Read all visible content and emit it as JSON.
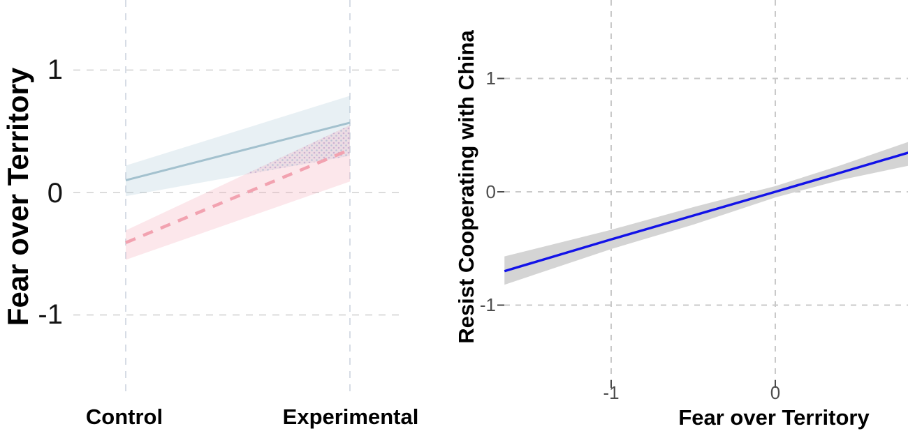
{
  "page": {
    "background": "#ffffff"
  },
  "chart_data": [
    {
      "id": "interaction-plot",
      "type": "line",
      "title": "",
      "xlabel": "",
      "ylabel": "Fear over Territory",
      "categories": [
        "Control",
        "Experimental"
      ],
      "yticks": [
        "1",
        "0",
        "-1"
      ],
      "ytick_values": [
        1,
        0,
        -1
      ],
      "ylim": [
        -1.65,
        1.57
      ],
      "grid": "dashed",
      "legend": "none",
      "colors": {
        "h_gridline": "#dcdcdc",
        "v_gridline": "#d6dce5",
        "overlap_stipple_a": "#b18cc4",
        "overlap_stipple_b": "#8fa8cc"
      },
      "series": [
        {
          "name": "group-solid-blue",
          "line_style": "solid",
          "line_color": "#a3c1ce",
          "band_color": "#a9c6d6",
          "band_opacity": 0.27,
          "values": [
            0.1,
            0.57
          ],
          "ci_lower": [
            -0.03,
            0.3
          ],
          "ci_upper": [
            0.22,
            0.79
          ]
        },
        {
          "name": "group-dashed-pink",
          "line_style": "dashed",
          "line_color": "#f2a2b0",
          "band_color": "#f5aebc",
          "band_opacity": 0.3,
          "values": [
            -0.41,
            0.35
          ],
          "ci_lower": [
            -0.55,
            0.09
          ],
          "ci_upper": [
            -0.31,
            0.55
          ]
        }
      ]
    },
    {
      "id": "marginal-effect-plot",
      "type": "line",
      "title": "",
      "xlabel": "Fear over Territory",
      "ylabel": "Resist Cooperating with China",
      "xticks": [
        "-1",
        "0"
      ],
      "xtick_values": [
        -1,
        0
      ],
      "yticks": [
        "1",
        "0",
        "-1"
      ],
      "ytick_values": [
        1,
        0,
        -1
      ],
      "xlim": [
        -1.65,
        0.81
      ],
      "ylim": [
        -1.66,
        1.69
      ],
      "grid": "dashed",
      "legend": "none",
      "colors": {
        "gridline": "#c9c9c9",
        "tick_mark": "#4a4a4a",
        "line": "#1212e8",
        "band": "#d4d4d4"
      },
      "line": {
        "x": [
          -1.65,
          -1.0,
          -0.5,
          0,
          0.4,
          0.81
        ],
        "y": [
          -0.7,
          -0.42,
          -0.21,
          0.0,
          0.17,
          0.345
        ]
      },
      "band": {
        "x": [
          -1.65,
          -1.0,
          -0.5,
          0,
          0.4,
          0.81
        ],
        "upper": [
          -0.57,
          -0.335,
          -0.135,
          0.05,
          0.235,
          0.44
        ],
        "lower": [
          -0.82,
          -0.505,
          -0.29,
          -0.05,
          0.105,
          0.23
        ]
      }
    }
  ]
}
